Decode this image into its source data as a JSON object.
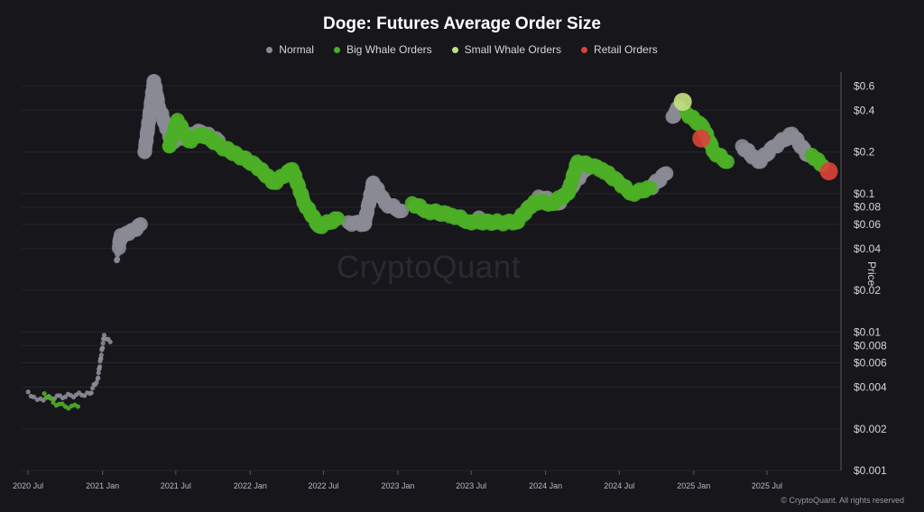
{
  "credit": "© CryptoQuant. All rights reserved",
  "watermark": "CryptoQuant",
  "colors": {
    "normal": "#8a8a95",
    "big_whale": "#4caf26",
    "small_whale": "#c2e07e",
    "retail": "#d8433a"
  },
  "chart_data": {
    "type": "scatter",
    "title": "Doge: Futures Average Order Size",
    "ylabel": "Price",
    "yscale": "log",
    "ylim": [
      0.001,
      0.7
    ],
    "legend": [
      "Normal",
      "Big Whale Orders",
      "Small Whale Orders",
      "Retail Orders"
    ],
    "legend_placement": "top-center",
    "x_ticks": [
      "2020 Jul",
      "2021 Jan",
      "2021 Jul",
      "2022 Jan",
      "2022 Jul",
      "2023 Jan",
      "2023 Jul",
      "2024 Jan",
      "2024 Jul",
      "2025 Jan",
      "2025 Jul"
    ],
    "y_ticks": [
      {
        "v": 0.6,
        "label": "$0.6"
      },
      {
        "v": 0.4,
        "label": "$0.4"
      },
      {
        "v": 0.2,
        "label": "$0.2"
      },
      {
        "v": 0.1,
        "label": "$0.1"
      },
      {
        "v": 0.08,
        "label": "$0.08"
      },
      {
        "v": 0.06,
        "label": "$0.06"
      },
      {
        "v": 0.04,
        "label": "$0.04"
      },
      {
        "v": 0.02,
        "label": "$0.02"
      },
      {
        "v": 0.01,
        "label": "$0.01"
      },
      {
        "v": 0.008,
        "label": "$0.008"
      },
      {
        "v": 0.006,
        "label": "$0.006"
      },
      {
        "v": 0.004,
        "label": "$0.004"
      },
      {
        "v": 0.002,
        "label": "$0.002"
      },
      {
        "v": 0.001,
        "label": "$0.001"
      }
    ],
    "series": [
      {
        "name": "Normal",
        "points": [
          {
            "x": "2020-07-01",
            "y": 0.0037
          },
          {
            "x": "2020-07-15",
            "y": 0.0034
          },
          {
            "x": "2020-08-01",
            "y": 0.0033
          },
          {
            "x": "2020-12-01",
            "y": 0.0036
          },
          {
            "x": "2020-12-20",
            "y": 0.0046
          },
          {
            "x": "2021-01-05",
            "y": 0.0095
          },
          {
            "x": "2021-01-20",
            "y": 0.0085
          },
          {
            "x": "2021-02-05",
            "y": 0.033
          },
          {
            "x": "2021-02-15",
            "y": 0.05
          },
          {
            "x": "2021-03-01",
            "y": 0.052
          },
          {
            "x": "2021-03-20",
            "y": 0.055
          },
          {
            "x": "2021-04-05",
            "y": 0.06
          },
          {
            "x": "2021-04-15",
            "y": 0.2
          },
          {
            "x": "2021-04-25",
            "y": 0.33
          },
          {
            "x": "2021-05-08",
            "y": 0.65
          },
          {
            "x": "2021-05-20",
            "y": 0.42
          },
          {
            "x": "2021-06-05",
            "y": 0.32
          },
          {
            "x": "2021-06-20",
            "y": 0.24
          },
          {
            "x": "2021-09-01",
            "y": 0.28
          },
          {
            "x": "2021-10-15",
            "y": 0.24
          },
          {
            "x": "2022-09-01",
            "y": 0.062
          },
          {
            "x": "2022-10-10",
            "y": 0.06
          },
          {
            "x": "2022-11-01",
            "y": 0.12
          },
          {
            "x": "2022-12-01",
            "y": 0.085
          },
          {
            "x": "2023-01-10",
            "y": 0.075
          },
          {
            "x": "2023-07-20",
            "y": 0.067
          },
          {
            "x": "2023-12-15",
            "y": 0.095
          },
          {
            "x": "2024-02-01",
            "y": 0.085
          },
          {
            "x": "2024-04-15",
            "y": 0.16
          },
          {
            "x": "2024-09-15",
            "y": 0.11
          },
          {
            "x": "2024-10-25",
            "y": 0.14
          },
          {
            "x": "2024-11-10",
            "y": 0.36
          },
          {
            "x": "2024-11-25",
            "y": 0.42
          },
          {
            "x": "2025-05-01",
            "y": 0.22
          },
          {
            "x": "2025-06-10",
            "y": 0.17
          },
          {
            "x": "2025-07-20",
            "y": 0.22
          },
          {
            "x": "2025-09-01",
            "y": 0.27
          },
          {
            "x": "2025-10-10",
            "y": 0.19
          }
        ]
      },
      {
        "name": "Big Whale Orders",
        "points": [
          {
            "x": "2020-08-10",
            "y": 0.0036
          },
          {
            "x": "2020-09-01",
            "y": 0.0031
          },
          {
            "x": "2020-10-01",
            "y": 0.0029
          },
          {
            "x": "2020-11-01",
            "y": 0.0029
          },
          {
            "x": "2021-06-15",
            "y": 0.22
          },
          {
            "x": "2021-07-05",
            "y": 0.34
          },
          {
            "x": "2021-08-01",
            "y": 0.24
          },
          {
            "x": "2021-09-05",
            "y": 0.27
          },
          {
            "x": "2021-10-20",
            "y": 0.22
          },
          {
            "x": "2021-12-01",
            "y": 0.19
          },
          {
            "x": "2022-01-15",
            "y": 0.16
          },
          {
            "x": "2022-03-01",
            "y": 0.12
          },
          {
            "x": "2022-04-15",
            "y": 0.15
          },
          {
            "x": "2022-05-15",
            "y": 0.085
          },
          {
            "x": "2022-06-20",
            "y": 0.058
          },
          {
            "x": "2022-08-05",
            "y": 0.066
          },
          {
            "x": "2023-02-05",
            "y": 0.085
          },
          {
            "x": "2023-03-15",
            "y": 0.075
          },
          {
            "x": "2023-05-15",
            "y": 0.07
          },
          {
            "x": "2023-06-25",
            "y": 0.063
          },
          {
            "x": "2023-09-10",
            "y": 0.062
          },
          {
            "x": "2023-10-20",
            "y": 0.062
          },
          {
            "x": "2023-12-05",
            "y": 0.088
          },
          {
            "x": "2024-01-15",
            "y": 0.085
          },
          {
            "x": "2024-02-25",
            "y": 0.1
          },
          {
            "x": "2024-03-20",
            "y": 0.17
          },
          {
            "x": "2024-05-20",
            "y": 0.15
          },
          {
            "x": "2024-07-01",
            "y": 0.12
          },
          {
            "x": "2024-08-01",
            "y": 0.1
          },
          {
            "x": "2024-09-15",
            "y": 0.11
          },
          {
            "x": "2024-12-15",
            "y": 0.38
          },
          {
            "x": "2025-01-25",
            "y": 0.3
          },
          {
            "x": "2025-02-20",
            "y": 0.2
          },
          {
            "x": "2025-03-25",
            "y": 0.17
          },
          {
            "x": "2025-10-20",
            "y": 0.19
          },
          {
            "x": "2025-11-15",
            "y": 0.16
          }
        ]
      },
      {
        "name": "Small Whale Orders",
        "points": [
          {
            "x": "2024-12-05",
            "y": 0.46
          }
        ]
      },
      {
        "name": "Retail Orders",
        "points": [
          {
            "x": "2025-01-20",
            "y": 0.25
          },
          {
            "x": "2025-12-01",
            "y": 0.145
          }
        ]
      }
    ]
  }
}
